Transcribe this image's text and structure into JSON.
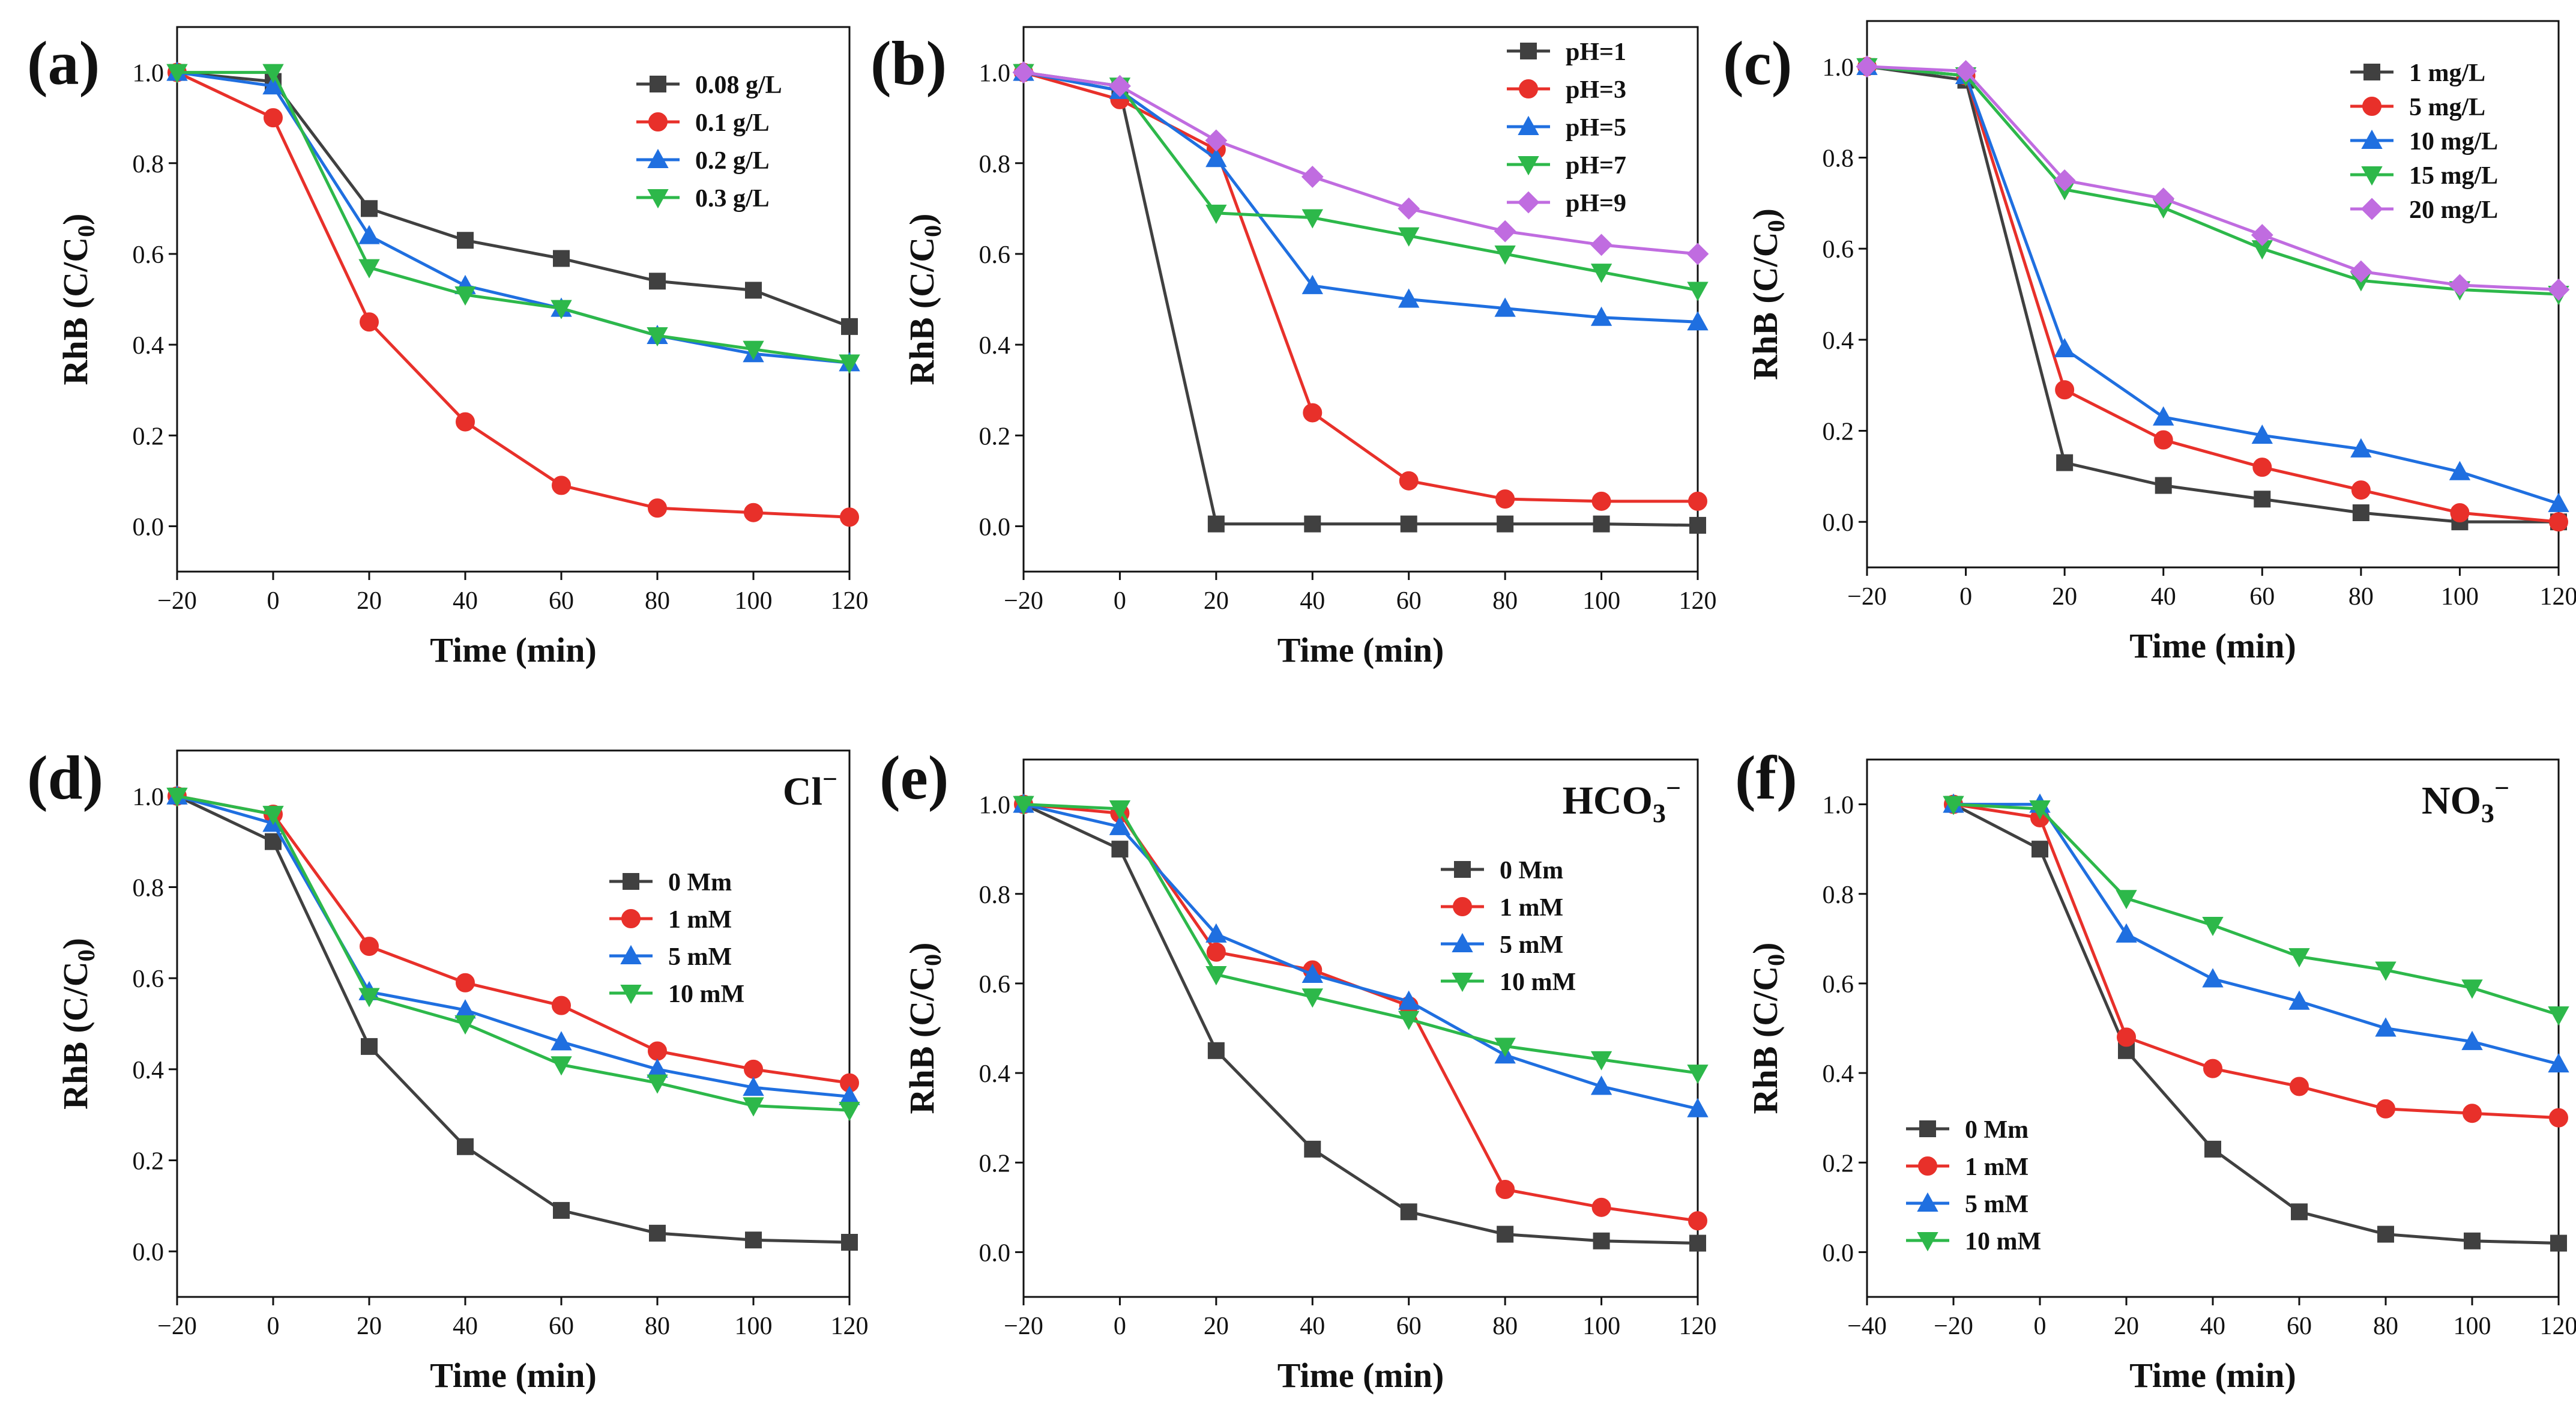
{
  "figure": {
    "description_label": "RhB degradation panels"
  },
  "chart_data": [
    {
      "panel": "(a)",
      "type": "line",
      "xlabel": "Time (min)",
      "ylabel": "RhB (C/C",
      "ylabel_sub": "0",
      "ylabel_end": ")",
      "xlim": [
        -20,
        120
      ],
      "ylim": [
        -0.1,
        1.1
      ],
      "xticks": [
        -20,
        0,
        20,
        40,
        60,
        80,
        100,
        120
      ],
      "xtick_labels": [
        "−20",
        "0",
        "20",
        "40",
        "60",
        "80",
        "100",
        "120"
      ],
      "yticks": [
        0.0,
        0.2,
        0.4,
        0.6,
        0.8,
        1.0
      ],
      "ytick_labels": [
        "0.0",
        "0.2",
        "0.4",
        "0.6",
        "0.8",
        "1.0"
      ],
      "x": [
        -20,
        0,
        20,
        40,
        60,
        80,
        100,
        120
      ],
      "legend": "top-right",
      "annotation": "",
      "series": [
        {
          "name": "0.08 g/L",
          "color": "#404040",
          "marker": "square",
          "values": [
            1.0,
            0.98,
            0.7,
            0.63,
            0.59,
            0.54,
            0.52,
            0.44
          ]
        },
        {
          "name": "0.1 g/L",
          "color": "#e8302a",
          "marker": "circle",
          "values": [
            1.0,
            0.9,
            0.45,
            0.23,
            0.09,
            0.04,
            0.03,
            0.02
          ]
        },
        {
          "name": "0.2 g/L",
          "color": "#1f6fe0",
          "marker": "triangle-up",
          "values": [
            1.0,
            0.97,
            0.64,
            0.53,
            0.48,
            0.42,
            0.38,
            0.36
          ]
        },
        {
          "name": "0.3 g/L",
          "color": "#2db84a",
          "marker": "triangle-down",
          "values": [
            1.0,
            1.0,
            0.57,
            0.51,
            0.48,
            0.42,
            0.39,
            0.36
          ]
        }
      ]
    },
    {
      "panel": "(b)",
      "type": "line",
      "xlabel": "Time (min)",
      "ylabel": "RhB (C/C",
      "ylabel_sub": "0",
      "ylabel_end": ")",
      "xlim": [
        -20,
        120
      ],
      "ylim": [
        -0.1,
        1.1
      ],
      "xticks": [
        -20,
        0,
        20,
        40,
        60,
        80,
        100,
        120
      ],
      "xtick_labels": [
        "−20",
        "0",
        "20",
        "40",
        "60",
        "80",
        "100",
        "120"
      ],
      "yticks": [
        0.0,
        0.2,
        0.4,
        0.6,
        0.8,
        1.0
      ],
      "ytick_labels": [
        "0.0",
        "0.2",
        "0.4",
        "0.6",
        "0.8",
        "1.0"
      ],
      "x": [
        -20,
        0,
        20,
        40,
        60,
        80,
        100,
        120
      ],
      "legend": "top-right",
      "annotation": "",
      "series": [
        {
          "name": "pH=1",
          "color": "#404040",
          "marker": "square",
          "values": [
            1.0,
            0.96,
            0.005,
            0.005,
            0.005,
            0.005,
            0.005,
            0.002
          ]
        },
        {
          "name": "pH=3",
          "color": "#e8302a",
          "marker": "circle",
          "values": [
            1.0,
            0.94,
            0.83,
            0.25,
            0.1,
            0.06,
            0.055,
            0.055
          ]
        },
        {
          "name": "pH=5",
          "color": "#1f6fe0",
          "marker": "triangle-up",
          "values": [
            1.0,
            0.96,
            0.81,
            0.53,
            0.5,
            0.48,
            0.46,
            0.45
          ]
        },
        {
          "name": "pH=7",
          "color": "#2db84a",
          "marker": "triangle-down",
          "values": [
            1.0,
            0.97,
            0.69,
            0.68,
            0.64,
            0.6,
            0.56,
            0.52
          ]
        },
        {
          "name": "pH=9",
          "color": "#c06ce0",
          "marker": "diamond",
          "values": [
            1.0,
            0.97,
            0.85,
            0.77,
            0.7,
            0.65,
            0.62,
            0.6
          ]
        }
      ]
    },
    {
      "panel": "(c)",
      "type": "line",
      "xlabel": "Time (min)",
      "ylabel": "RhB (C/C",
      "ylabel_sub": "0",
      "ylabel_end": ")",
      "xlim": [
        -20,
        120
      ],
      "ylim": [
        -0.1,
        1.1
      ],
      "xticks": [
        -20,
        0,
        20,
        40,
        60,
        80,
        100,
        120
      ],
      "xtick_labels": [
        "−20",
        "0",
        "20",
        "40",
        "60",
        "80",
        "100",
        "120"
      ],
      "yticks": [
        0.0,
        0.2,
        0.4,
        0.6,
        0.8,
        1.0
      ],
      "ytick_labels": [
        "0.0",
        "0.2",
        "0.4",
        "0.6",
        "0.8",
        "1.0"
      ],
      "x": [
        -20,
        0,
        20,
        40,
        60,
        80,
        100,
        120
      ],
      "legend": "top-right",
      "annotation": "",
      "series": [
        {
          "name": "1 mg/L",
          "color": "#404040",
          "marker": "square",
          "values": [
            1.0,
            0.97,
            0.13,
            0.08,
            0.05,
            0.02,
            0.0,
            0.0
          ]
        },
        {
          "name": "5 mg/L",
          "color": "#e8302a",
          "marker": "circle",
          "values": [
            1.0,
            0.98,
            0.29,
            0.18,
            0.12,
            0.07,
            0.02,
            0.0
          ]
        },
        {
          "name": "10 mg/L",
          "color": "#1f6fe0",
          "marker": "triangle-up",
          "values": [
            1.0,
            0.98,
            0.38,
            0.23,
            0.19,
            0.16,
            0.11,
            0.04
          ]
        },
        {
          "name": "15 mg/L",
          "color": "#2db84a",
          "marker": "triangle-down",
          "values": [
            1.0,
            0.98,
            0.73,
            0.69,
            0.6,
            0.53,
            0.51,
            0.5
          ]
        },
        {
          "name": "20 mg/L",
          "color": "#c06ce0",
          "marker": "diamond",
          "values": [
            1.0,
            0.99,
            0.75,
            0.71,
            0.63,
            0.55,
            0.52,
            0.51
          ]
        }
      ]
    },
    {
      "panel": "(d)",
      "type": "line",
      "xlabel": "Time (min)",
      "ylabel": "RhB (C/C",
      "ylabel_sub": "0",
      "ylabel_end": ")",
      "xlim": [
        -20,
        120
      ],
      "ylim": [
        -0.1,
        1.1
      ],
      "xticks": [
        -20,
        0,
        20,
        40,
        60,
        80,
        100,
        120
      ],
      "xtick_labels": [
        "−20",
        "0",
        "20",
        "40",
        "60",
        "80",
        "100",
        "120"
      ],
      "yticks": [
        0.0,
        0.2,
        0.4,
        0.6,
        0.8,
        1.0
      ],
      "ytick_labels": [
        "0.0",
        "0.2",
        "0.4",
        "0.6",
        "0.8",
        "1.0"
      ],
      "x": [
        -20,
        0,
        20,
        40,
        60,
        80,
        100,
        120
      ],
      "legend": "center-right",
      "annotation": "Cl⁻",
      "series": [
        {
          "name": "0 Mm",
          "color": "#404040",
          "marker": "square",
          "values": [
            1.0,
            0.9,
            0.45,
            0.23,
            0.09,
            0.04,
            0.025,
            0.02
          ]
        },
        {
          "name": "1 mM",
          "color": "#e8302a",
          "marker": "circle",
          "values": [
            1.0,
            0.96,
            0.67,
            0.59,
            0.54,
            0.44,
            0.4,
            0.37
          ]
        },
        {
          "name": "5 mM",
          "color": "#1f6fe0",
          "marker": "triangle-up",
          "values": [
            1.0,
            0.94,
            0.57,
            0.53,
            0.46,
            0.4,
            0.36,
            0.34
          ]
        },
        {
          "name": "10 mM",
          "color": "#2db84a",
          "marker": "triangle-down",
          "values": [
            1.0,
            0.96,
            0.56,
            0.5,
            0.41,
            0.37,
            0.32,
            0.31
          ]
        }
      ]
    },
    {
      "panel": "(e)",
      "type": "line",
      "xlabel": "Time (min)",
      "ylabel": "RhB (C/C",
      "ylabel_sub": "0",
      "ylabel_end": ")",
      "xlim": [
        -20,
        120
      ],
      "ylim": [
        -0.1,
        1.1
      ],
      "xticks": [
        -20,
        0,
        20,
        40,
        60,
        80,
        100,
        120
      ],
      "xtick_labels": [
        "−20",
        "0",
        "20",
        "40",
        "60",
        "80",
        "100",
        "120"
      ],
      "yticks": [
        0.0,
        0.2,
        0.4,
        0.6,
        0.8,
        1.0
      ],
      "ytick_labels": [
        "0.0",
        "0.2",
        "0.4",
        "0.6",
        "0.8",
        "1.0"
      ],
      "x": [
        -20,
        0,
        20,
        40,
        60,
        80,
        100,
        120
      ],
      "legend": "center-right",
      "annotation": "HCO₃⁻",
      "series": [
        {
          "name": "0 Mm",
          "color": "#404040",
          "marker": "square",
          "values": [
            1.0,
            0.9,
            0.45,
            0.23,
            0.09,
            0.04,
            0.025,
            0.02
          ]
        },
        {
          "name": "1 mM",
          "color": "#e8302a",
          "marker": "circle",
          "values": [
            1.0,
            0.98,
            0.67,
            0.63,
            0.55,
            0.14,
            0.1,
            0.07
          ]
        },
        {
          "name": "5 mM",
          "color": "#1f6fe0",
          "marker": "triangle-up",
          "values": [
            1.0,
            0.95,
            0.71,
            0.62,
            0.56,
            0.44,
            0.37,
            0.32
          ]
        },
        {
          "name": "10 mM",
          "color": "#2db84a",
          "marker": "triangle-down",
          "values": [
            1.0,
            0.99,
            0.62,
            0.57,
            0.52,
            0.46,
            0.43,
            0.4
          ]
        }
      ]
    },
    {
      "panel": "(f)",
      "type": "line",
      "xlabel": "Time (min)",
      "ylabel": "RhB (C/C",
      "ylabel_sub": "0",
      "ylabel_end": ")",
      "xlim": [
        -40,
        120
      ],
      "ylim": [
        -0.1,
        1.1
      ],
      "xticks": [
        -40,
        -20,
        0,
        20,
        40,
        60,
        80,
        100,
        120
      ],
      "xtick_labels": [
        "−40",
        "−20",
        "0",
        "20",
        "40",
        "60",
        "80",
        "100",
        "120"
      ],
      "yticks": [
        0.0,
        0.2,
        0.4,
        0.6,
        0.8,
        1.0
      ],
      "ytick_labels": [
        "0.0",
        "0.2",
        "0.4",
        "0.6",
        "0.8",
        "1.0"
      ],
      "x": [
        -20,
        0,
        20,
        40,
        60,
        80,
        100,
        120
      ],
      "legend": "bottom-left",
      "annotation": "NO₃⁻",
      "series": [
        {
          "name": "0 Mm",
          "color": "#404040",
          "marker": "square",
          "values": [
            1.0,
            0.9,
            0.45,
            0.23,
            0.09,
            0.04,
            0.025,
            0.02
          ]
        },
        {
          "name": "1 mM",
          "color": "#e8302a",
          "marker": "circle",
          "values": [
            1.0,
            0.97,
            0.48,
            0.41,
            0.37,
            0.32,
            0.31,
            0.3
          ]
        },
        {
          "name": "5 mM",
          "color": "#1f6fe0",
          "marker": "triangle-up",
          "values": [
            1.0,
            1.0,
            0.71,
            0.61,
            0.56,
            0.5,
            0.47,
            0.42
          ]
        },
        {
          "name": "10 mM",
          "color": "#2db84a",
          "marker": "triangle-down",
          "values": [
            1.0,
            0.99,
            0.79,
            0.73,
            0.66,
            0.63,
            0.59,
            0.53
          ]
        }
      ]
    }
  ]
}
